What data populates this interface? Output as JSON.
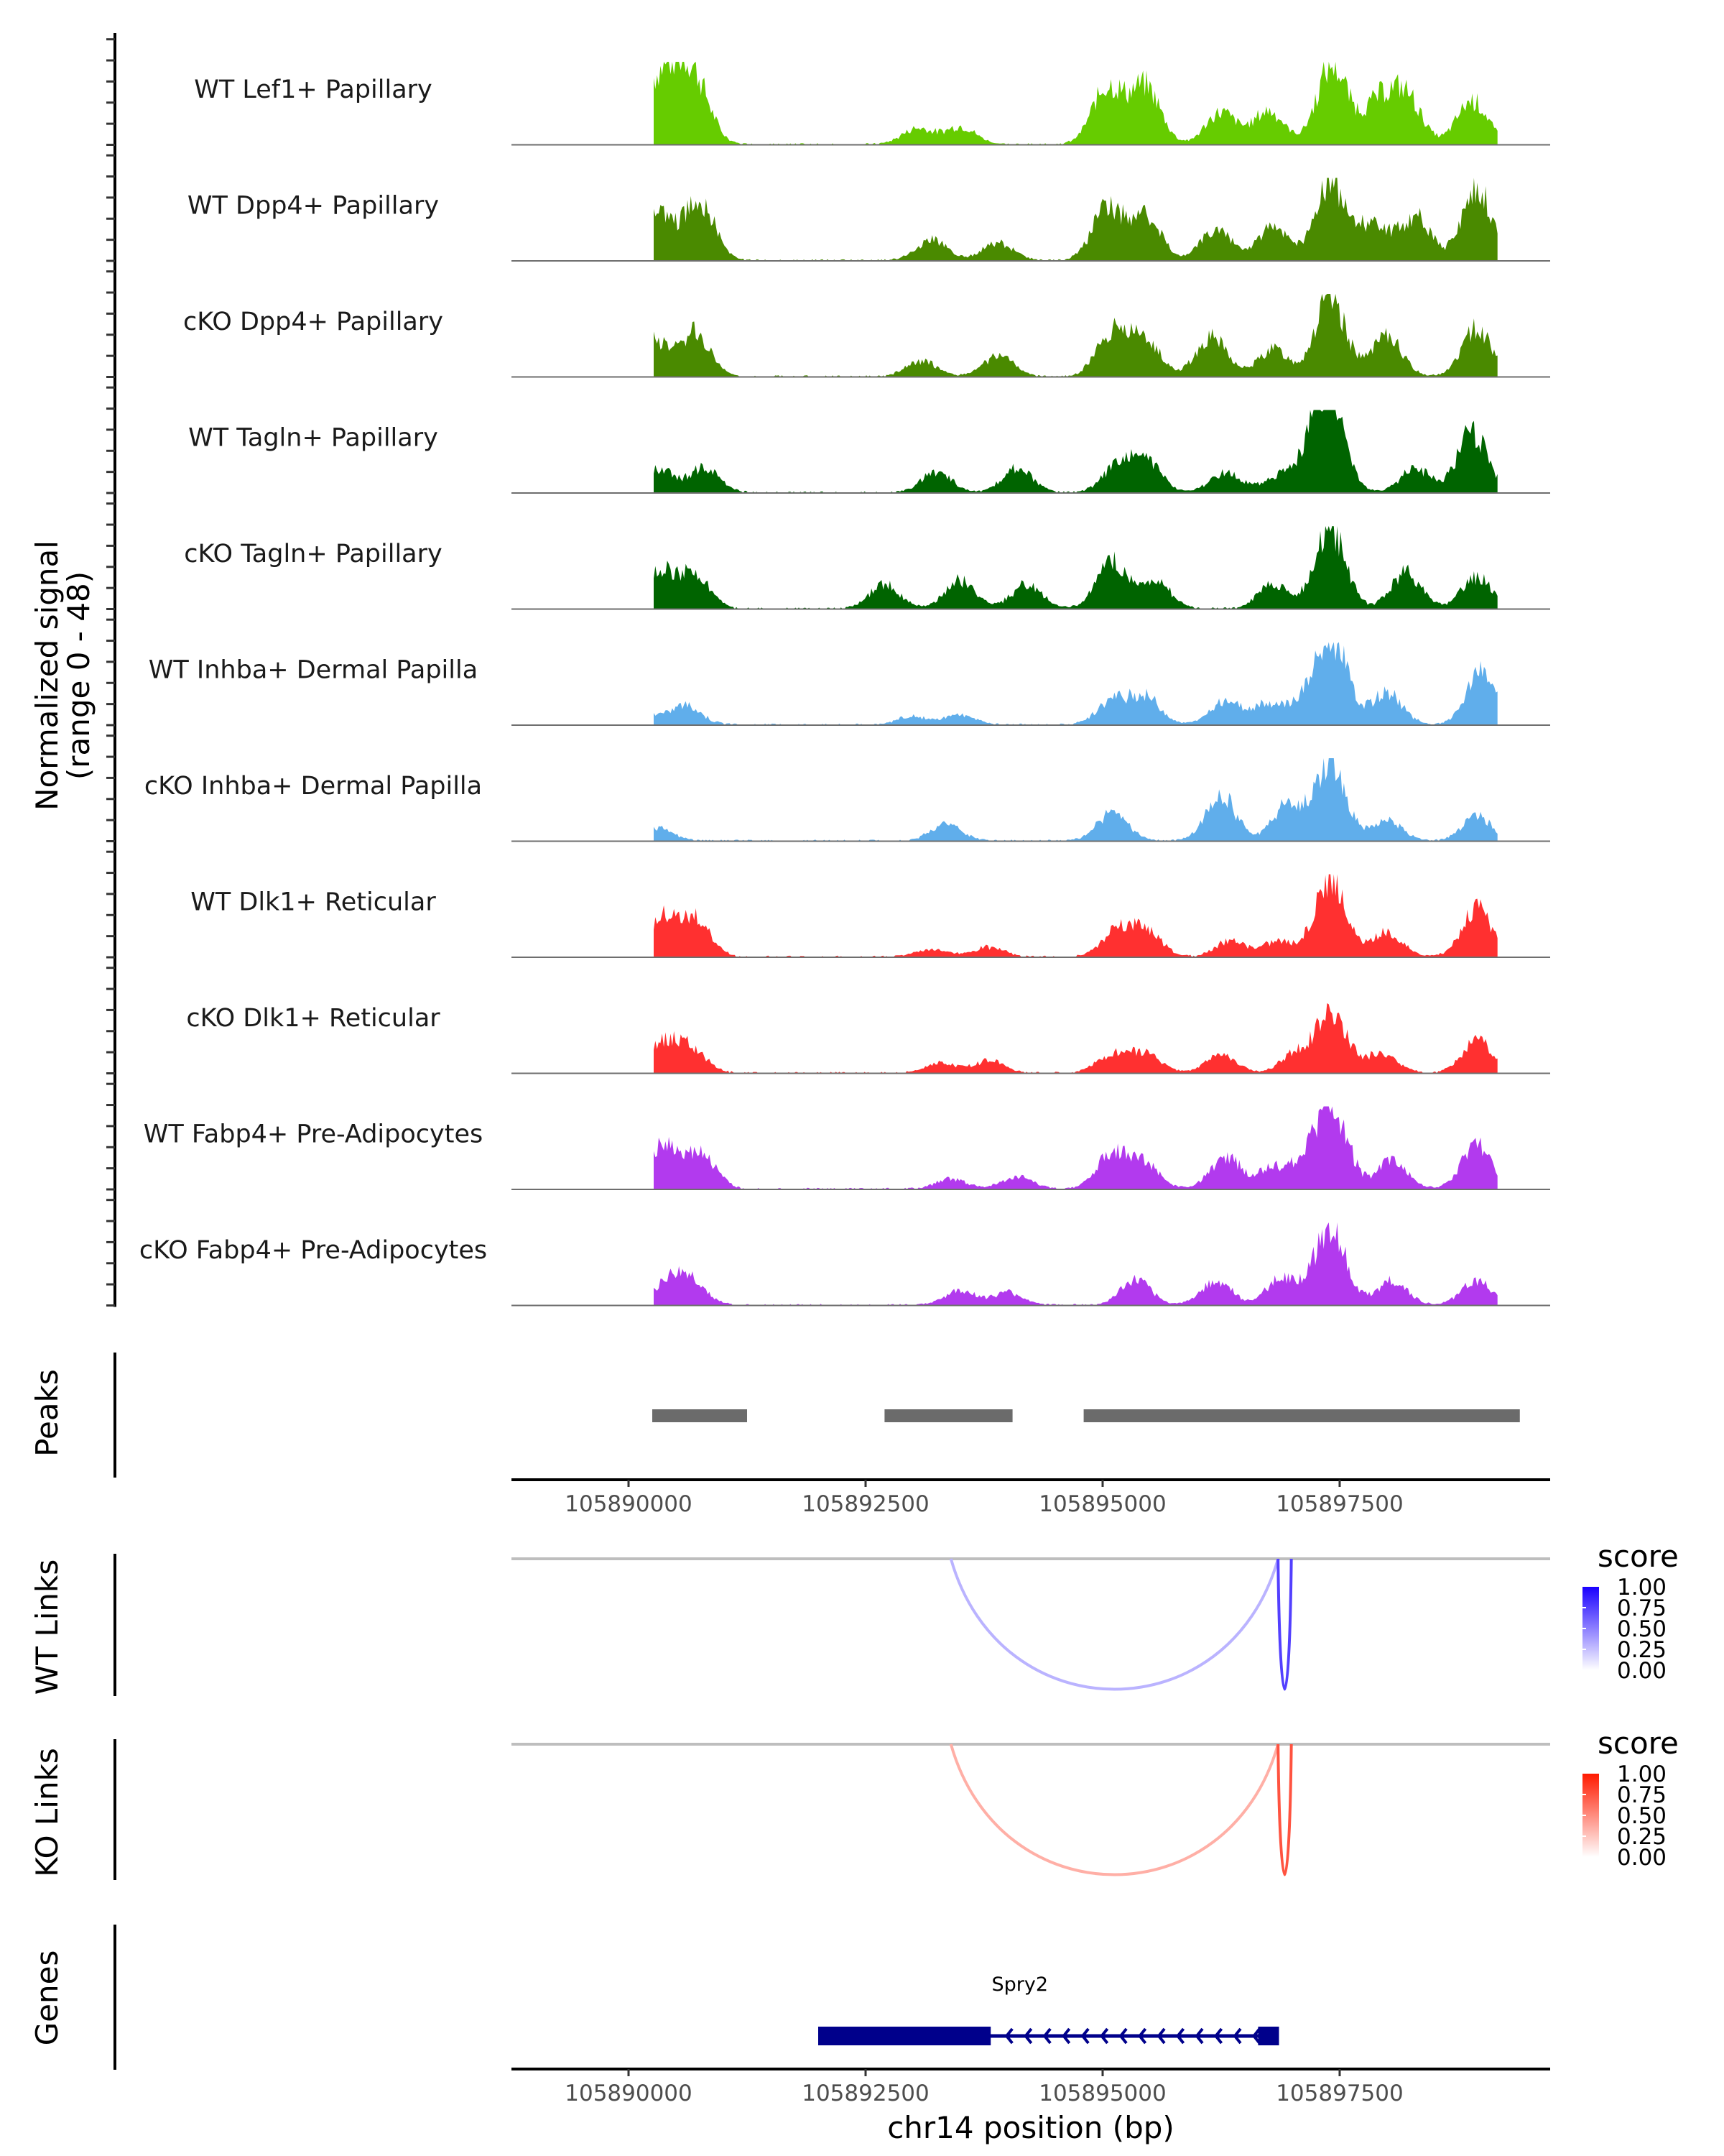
{
  "chart_data": {
    "type": "area",
    "title": "",
    "region": {
      "chrom": "chr14",
      "start": 105888765,
      "end": 105899720
    },
    "ylabel": "Normalized signal\n(range 0 - 48)",
    "ylabel_lines": [
      "Normalized signal",
      "(range 0 - 48)"
    ],
    "ylim": [
      0,
      48
    ],
    "xlabel": "chr14 position (bp)",
    "xticks": [
      105890000,
      105892500,
      105895000,
      105897500
    ],
    "xtick_labels": [
      "105890000",
      "105892500",
      "105895000",
      "105897500"
    ],
    "coverage_tracks": [
      {
        "name": "WT Lef1+ Papillary",
        "color": "#66CC00",
        "peaks": [
          [
            105890200,
            0.5
          ],
          [
            105890450,
            0.7
          ],
          [
            105890700,
            0.75
          ],
          [
            105893050,
            0.2
          ],
          [
            105893500,
            0.22
          ],
          [
            105895050,
            0.72
          ],
          [
            105895450,
            0.72
          ],
          [
            105896250,
            0.4
          ],
          [
            105896750,
            0.42
          ],
          [
            105897420,
            1.0
          ],
          [
            105897900,
            0.5
          ],
          [
            105898200,
            0.6
          ],
          [
            105898900,
            0.55
          ]
        ]
      },
      {
        "name": "WT Dpp4+ Papillary",
        "color": "#4A8A00",
        "peaks": [
          [
            105890300,
            0.6
          ],
          [
            105890750,
            0.75
          ],
          [
            105893200,
            0.25
          ],
          [
            105893900,
            0.22
          ],
          [
            105895050,
            0.65
          ],
          [
            105895450,
            0.55
          ],
          [
            105896200,
            0.4
          ],
          [
            105896800,
            0.42
          ],
          [
            105897400,
            1.0
          ],
          [
            105897850,
            0.45
          ],
          [
            105898300,
            0.55
          ],
          [
            105898950,
            0.9
          ]
        ]
      },
      {
        "name": "cKO Dpp4+ Papillary",
        "color": "#4A8A00",
        "peaks": [
          [
            105890250,
            0.45
          ],
          [
            105890700,
            0.55
          ],
          [
            105893100,
            0.2
          ],
          [
            105893900,
            0.25
          ],
          [
            105895100,
            0.55
          ],
          [
            105895450,
            0.45
          ],
          [
            105896150,
            0.5
          ],
          [
            105896800,
            0.35
          ],
          [
            105897400,
            1.0
          ],
          [
            105898000,
            0.5
          ],
          [
            105898950,
            0.6
          ]
        ]
      },
      {
        "name": "WT Tagln+ Papillary",
        "color": "#006400",
        "peaks": [
          [
            105890300,
            0.3
          ],
          [
            105890800,
            0.3
          ],
          [
            105893250,
            0.25
          ],
          [
            105894100,
            0.3
          ],
          [
            105895150,
            0.3
          ],
          [
            105895450,
            0.4
          ],
          [
            105896300,
            0.25
          ],
          [
            105896850,
            0.2
          ],
          [
            105897250,
            0.5
          ],
          [
            105897400,
            1.0
          ],
          [
            105898300,
            0.3
          ],
          [
            105898900,
            0.75
          ]
        ]
      },
      {
        "name": "cKO Tagln+ Papillary",
        "color": "#006400",
        "peaks": [
          [
            105890350,
            0.45
          ],
          [
            105890700,
            0.4
          ],
          [
            105892700,
            0.3
          ],
          [
            105893500,
            0.35
          ],
          [
            105894200,
            0.3
          ],
          [
            105895100,
            0.6
          ],
          [
            105895550,
            0.35
          ],
          [
            105896800,
            0.3
          ],
          [
            105897400,
            1.0
          ],
          [
            105898200,
            0.45
          ],
          [
            105898950,
            0.4
          ]
        ]
      },
      {
        "name": "WT Inhba+ Dermal Papilla",
        "color": "#60AEEB",
        "peaks": [
          [
            105890100,
            0.2
          ],
          [
            105890600,
            0.25
          ],
          [
            105893000,
            0.1
          ],
          [
            105893500,
            0.12
          ],
          [
            105895100,
            0.3
          ],
          [
            105895450,
            0.35
          ],
          [
            105896300,
            0.3
          ],
          [
            105896750,
            0.25
          ],
          [
            105897150,
            0.3
          ],
          [
            105897430,
            1.0
          ],
          [
            105898000,
            0.4
          ],
          [
            105899000,
            0.65
          ]
        ]
      },
      {
        "name": "cKO Inhba+ Dermal Papilla",
        "color": "#60AEEB",
        "peaks": [
          [
            105889600,
            0.15
          ],
          [
            105890300,
            0.15
          ],
          [
            105893350,
            0.2
          ],
          [
            105895100,
            0.35
          ],
          [
            105896250,
            0.55
          ],
          [
            105896950,
            0.45
          ],
          [
            105897400,
            1.0
          ],
          [
            105898000,
            0.25
          ],
          [
            105898950,
            0.3
          ]
        ]
      },
      {
        "name": "WT Dlk1+ Reticular",
        "color": "#FF3030",
        "peaks": [
          [
            105890350,
            0.5
          ],
          [
            105890700,
            0.45
          ],
          [
            105893200,
            0.1
          ],
          [
            105893800,
            0.12
          ],
          [
            105895150,
            0.3
          ],
          [
            105895450,
            0.35
          ],
          [
            105896350,
            0.2
          ],
          [
            105896850,
            0.2
          ],
          [
            105897400,
            1.0
          ],
          [
            105898000,
            0.3
          ],
          [
            105898950,
            0.6
          ]
        ]
      },
      {
        "name": "cKO Dlk1+ Reticular",
        "color": "#FF3030",
        "peaks": [
          [
            105890350,
            0.35
          ],
          [
            105890650,
            0.3
          ],
          [
            105893300,
            0.12
          ],
          [
            105893800,
            0.15
          ],
          [
            105895100,
            0.22
          ],
          [
            105895450,
            0.25
          ],
          [
            105896250,
            0.22
          ],
          [
            105897050,
            0.25
          ],
          [
            105897420,
            0.75
          ],
          [
            105897950,
            0.25
          ],
          [
            105898950,
            0.4
          ]
        ]
      },
      {
        "name": "WT Fabp4+ Pre-Adipocytes",
        "color": "#B23AEE",
        "peaks": [
          [
            105890350,
            0.55
          ],
          [
            105890750,
            0.45
          ],
          [
            105893400,
            0.12
          ],
          [
            105894100,
            0.15
          ],
          [
            105895100,
            0.45
          ],
          [
            105895450,
            0.3
          ],
          [
            105896300,
            0.4
          ],
          [
            105896800,
            0.25
          ],
          [
            105897150,
            0.3
          ],
          [
            105897430,
            1.0
          ],
          [
            105898050,
            0.35
          ],
          [
            105898950,
            0.55
          ]
        ]
      },
      {
        "name": "cKO Fabp4+ Pre-Adipocytes",
        "color": "#B23AEE",
        "peaks": [
          [
            105890400,
            0.25
          ],
          [
            105890650,
            0.3
          ],
          [
            105893500,
            0.18
          ],
          [
            105894000,
            0.15
          ],
          [
            105895350,
            0.3
          ],
          [
            105896200,
            0.3
          ],
          [
            105896900,
            0.35
          ],
          [
            105897400,
            1.0
          ],
          [
            105898050,
            0.3
          ],
          [
            105898950,
            0.3
          ]
        ]
      }
    ],
    "peaks_track": {
      "label": "Peaks",
      "color": "#6B6B6B",
      "ranges": [
        [
          105890250,
          105891250
        ],
        [
          105892700,
          105894050
        ],
        [
          105894800,
          105899400
        ]
      ]
    },
    "links_tracks": [
      {
        "label": "WT Links",
        "legend_title": "score",
        "low_color": "#FFFFFF",
        "high_color": "#1A00FF",
        "links": [
          {
            "start": 105893400,
            "end": 105896850,
            "score": 0.3
          },
          {
            "start": 105896850,
            "end": 105896990,
            "score": 0.75
          }
        ]
      },
      {
        "label": "KO Links",
        "legend_title": "score",
        "low_color": "#FFFFFF",
        "high_color": "#FF1A00",
        "links": [
          {
            "start": 105893400,
            "end": 105896850,
            "score": 0.35
          },
          {
            "start": 105896850,
            "end": 105896990,
            "score": 0.75
          }
        ]
      }
    ],
    "legend_ticks": [
      "1.00",
      "0.75",
      "0.50",
      "0.25",
      "0.00"
    ],
    "genes_track": {
      "label": "Genes",
      "color": "#00008B",
      "genes": [
        {
          "name": "Spry2",
          "start": 105892000,
          "end": 105896860,
          "strand": "-",
          "exons": [
            [
              105892000,
              105893820
            ],
            [
              105896640,
              105896860
            ]
          ]
        }
      ]
    }
  }
}
